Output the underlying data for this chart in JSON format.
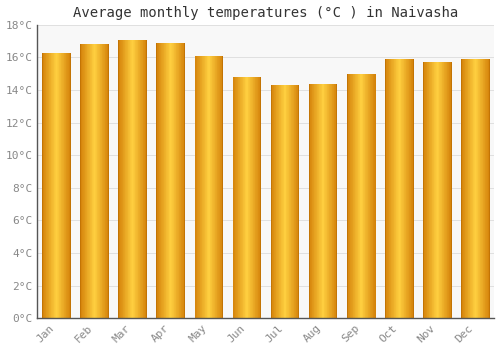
{
  "title": "Average monthly temperatures (°C ) in Naivasha",
  "months": [
    "Jan",
    "Feb",
    "Mar",
    "Apr",
    "May",
    "Jun",
    "Jul",
    "Aug",
    "Sep",
    "Oct",
    "Nov",
    "Dec"
  ],
  "values": [
    16.3,
    16.8,
    17.1,
    16.9,
    16.1,
    14.8,
    14.3,
    14.4,
    15.0,
    15.9,
    15.7,
    15.9
  ],
  "bar_color_left": "#E8890A",
  "bar_color_center": "#FFD040",
  "bar_color_right": "#F5A800",
  "bar_edge_color": "#CC7700",
  "ylim": [
    0,
    18
  ],
  "yticks": [
    0,
    2,
    4,
    6,
    8,
    10,
    12,
    14,
    16,
    18
  ],
  "ytick_labels": [
    "0°C",
    "2°C",
    "4°C",
    "6°C",
    "8°C",
    "10°C",
    "12°C",
    "14°C",
    "16°C",
    "18°C"
  ],
  "background_color": "#FFFFFF",
  "plot_bg_color": "#F8F8F8",
  "grid_color": "#E0E0E0",
  "title_fontsize": 10,
  "tick_fontsize": 8,
  "tick_color": "#888888",
  "title_color": "#333333",
  "font_family": "monospace",
  "bar_width": 0.75,
  "n_gradient_strips": 40
}
